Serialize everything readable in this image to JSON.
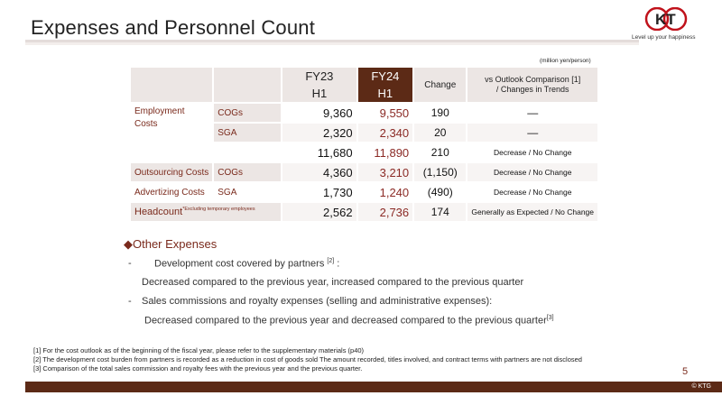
{
  "header": {
    "title": "Expenses and Personnel Count",
    "logo_text": "KT",
    "tagline": "Level up your happiness"
  },
  "table": {
    "unit": "(million yen/person)",
    "headers": {
      "fy23_line1": "FY23",
      "fy23_line2": "H1",
      "fy24_line1": "FY24",
      "fy24_line2": "H1",
      "change": "Change",
      "outlook_line1": "vs Outlook Comparison [1]",
      "outlook_line2": "/ Changes in Trends"
    },
    "rows": [
      {
        "category": "Employment Costs",
        "sub": "COGs",
        "fy23": "9,360",
        "fy24": "9,550",
        "change": "190",
        "outlook": "—"
      },
      {
        "category": "",
        "sub": "SGA",
        "fy23": "2,320",
        "fy24": "2,340",
        "change": "20",
        "outlook": "—"
      },
      {
        "category": "",
        "sub": "",
        "fy23": "11,680",
        "fy24": "11,890",
        "change": "210",
        "outlook": "Decrease / No Change"
      },
      {
        "category": "Outsourcing Costs",
        "sub": "COGs",
        "fy23": "4,360",
        "fy24": "3,210",
        "change": "(1,150)",
        "outlook": "Decrease / No Change"
      },
      {
        "category": "Advertizing Costs",
        "sub": "SGA",
        "fy23": "1,730",
        "fy24": "1,240",
        "change": "(490)",
        "outlook": "Decrease / No Change"
      },
      {
        "category": "Headcount",
        "category_note": "*Excluding temporary employees",
        "sub": "",
        "fy23": "2,562",
        "fy24": "2,736",
        "change": "174",
        "outlook": "Generally as Expected / No Change"
      }
    ]
  },
  "other_expenses": {
    "heading": "Other Expenses",
    "bullet1": "Development cost covered by partners",
    "bullet1_ref": "[2]",
    "bullet1_suffix": " :",
    "bullet1_detail": "Decreased compared to the previous year, increased compared to the previous quarter",
    "bullet2": "Sales commissions and royalty expenses (selling and administrative expenses):",
    "bullet2_detail": "Decreased compared to the previous year and decreased compared to the previous quarter",
    "bullet2_ref": "[3]"
  },
  "footnotes": [
    "[1] For the cost outlook as of the beginning of the fiscal year, please refer to the supplementary materials (p40)",
    "[2] The development cost burden from partners is recorded as a reduction in cost of goods sold The amount recorded, titles involved, and contract terms with partners are not disclosed",
    "[3] Comparison of the total sales commission and royalty fees with the previous year and the previous quarter."
  ],
  "footer": {
    "page_number": "5",
    "copyright": "© KTG"
  },
  "colors": {
    "brand_dark": "#5c2a16",
    "accent_red": "#8b2a25",
    "cell_bg": "#ece6e4"
  }
}
